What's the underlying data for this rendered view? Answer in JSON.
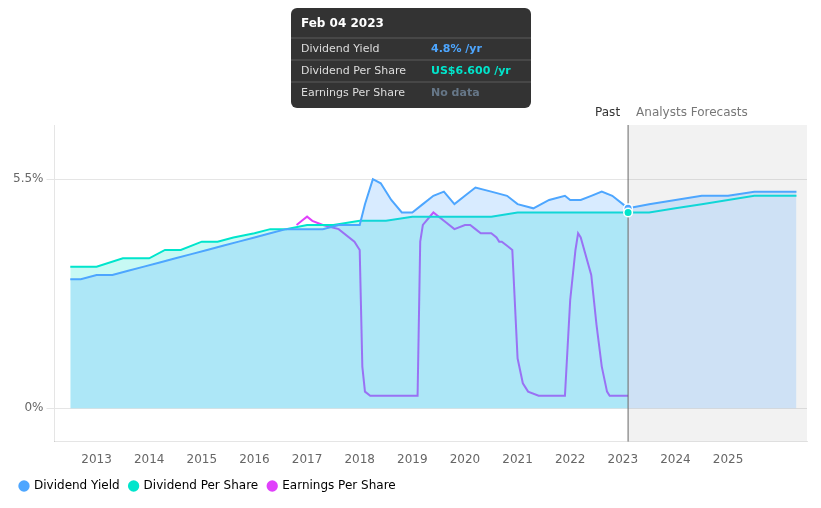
{
  "chart_data": {
    "type": "line",
    "xlim": [
      2012.2,
      2026.5
    ],
    "xticks": [
      2013,
      2014,
      2015,
      2016,
      2017,
      2018,
      2019,
      2020,
      2021,
      2022,
      2023,
      2024,
      2025
    ],
    "ylim": [
      -0.008,
      0.068
    ],
    "yticks": [
      {
        "value": 0,
        "label": "0%"
      },
      {
        "value": 0.055,
        "label": "5.5%"
      }
    ],
    "grid": true,
    "legend": "lower left",
    "series": [
      {
        "name": "Dividend Yield",
        "type": "area",
        "color": "#4da6ff",
        "x": [
          2012.5,
          2012.7,
          2013.0,
          2013.3,
          2013.6,
          2013.9,
          2014.2,
          2014.5,
          2014.8,
          2015.1,
          2015.4,
          2015.7,
          2016.0,
          2016.3,
          2016.6,
          2016.9,
          2017.0,
          2017.3,
          2017.6,
          2017.9,
          2018.0,
          2018.1,
          2018.25,
          2018.4,
          2018.6,
          2018.8,
          2019.0,
          2019.2,
          2019.4,
          2019.6,
          2019.8,
          2020.0,
          2020.2,
          2020.5,
          2020.8,
          2021.0,
          2021.3,
          2021.6,
          2021.9,
          2022.0,
          2022.2,
          2022.4,
          2022.6,
          2022.8,
          2023.0,
          2023.1
        ],
        "values": [
          0.031,
          0.031,
          0.032,
          0.032,
          0.033,
          0.034,
          0.035,
          0.036,
          0.037,
          0.038,
          0.039,
          0.04,
          0.041,
          0.042,
          0.043,
          0.043,
          0.043,
          0.043,
          0.044,
          0.044,
          0.044,
          0.049,
          0.055,
          0.054,
          0.05,
          0.047,
          0.047,
          0.049,
          0.051,
          0.052,
          0.049,
          0.051,
          0.053,
          0.052,
          0.051,
          0.049,
          0.048,
          0.05,
          0.051,
          0.05,
          0.05,
          0.051,
          0.052,
          0.051,
          0.049,
          0.048
        ]
      },
      {
        "name": "Dividend Yield",
        "type": "area",
        "color": "#4da6ff",
        "x": [
          2023.1,
          2023.5,
          2024.0,
          2024.5,
          2025.0,
          2025.5,
          2026.3
        ],
        "values": [
          0.048,
          0.049,
          0.05,
          0.051,
          0.051,
          0.052,
          0.052
        ]
      },
      {
        "name": "Dividend Per Share",
        "type": "area",
        "color": "#00e5cc",
        "x": [
          2012.5,
          2013.0,
          2013.5,
          2014.0,
          2014.3,
          2014.6,
          2015.0,
          2015.3,
          2015.6,
          2016.0,
          2016.3,
          2016.6,
          2017.0,
          2017.5,
          2018.0,
          2018.5,
          2019.0,
          2019.5,
          2020.0,
          2020.5,
          2021.0,
          2021.5,
          2022.0,
          2022.5,
          2023.0,
          2023.1
        ],
        "values": [
          0.034,
          0.034,
          0.036,
          0.036,
          0.038,
          0.038,
          0.04,
          0.04,
          0.041,
          0.042,
          0.043,
          0.043,
          0.044,
          0.044,
          0.045,
          0.045,
          0.046,
          0.046,
          0.046,
          0.046,
          0.047,
          0.047,
          0.047,
          0.047,
          0.047,
          0.047
        ]
      },
      {
        "name": "Dividend Per Share",
        "type": "line",
        "color": "#00e5cc",
        "x": [
          2023.1,
          2023.5,
          2024.0,
          2024.5,
          2025.0,
          2025.5,
          2026.3
        ],
        "values": [
          0.047,
          0.047,
          0.048,
          0.049,
          0.05,
          0.051,
          0.051
        ]
      },
      {
        "name": "Earnings Per Share",
        "type": "line",
        "color": "#e040fb",
        "x": [
          2016.8,
          2016.9,
          2017.0,
          2017.1,
          2017.3,
          2017.6,
          2017.9,
          2018.0,
          2018.05,
          2018.1,
          2018.2,
          2018.4,
          2018.6,
          2018.8,
          2018.9,
          2019.0,
          2019.1,
          2019.15,
          2019.2,
          2019.4,
          2019.6,
          2019.8,
          2020.0,
          2020.1,
          2020.2,
          2020.3,
          2020.5,
          2020.6,
          2020.65,
          2020.7,
          2020.8,
          2020.9,
          2021.0,
          2021.1,
          2021.2,
          2021.4,
          2021.6,
          2021.8,
          2021.9,
          2022.0,
          2022.1,
          2022.15,
          2022.2,
          2022.4,
          2022.5,
          2022.6,
          2022.7,
          2022.75,
          2022.8,
          2022.9,
          2023.0,
          2023.1
        ],
        "values": [
          0.044,
          0.045,
          0.046,
          0.045,
          0.044,
          0.043,
          0.04,
          0.038,
          0.01,
          0.004,
          0.003,
          0.003,
          0.003,
          0.003,
          0.003,
          0.003,
          0.003,
          0.04,
          0.044,
          0.047,
          0.045,
          0.043,
          0.044,
          0.044,
          0.043,
          0.042,
          0.042,
          0.041,
          0.04,
          0.04,
          0.039,
          0.038,
          0.012,
          0.006,
          0.004,
          0.003,
          0.003,
          0.003,
          0.003,
          0.026,
          0.038,
          0.042,
          0.041,
          0.032,
          0.02,
          0.01,
          0.004,
          0.003,
          0.003,
          0.003,
          0.003,
          0.003
        ]
      }
    ],
    "divider": {
      "x": 2023.1,
      "left_label": "Past",
      "right_label": "Analysts Forecasts",
      "markers": [
        {
          "value": 0.048,
          "color": "#4da6ff"
        },
        {
          "value": 0.047,
          "color": "#00e5cc"
        }
      ]
    },
    "tooltip": {
      "title": "Feb 04 2023",
      "rows": [
        {
          "label": "Dividend Yield",
          "value": "4.8% /yr",
          "color": "#4da6ff"
        },
        {
          "label": "Dividend Per Share",
          "value": "US$6.600 /yr",
          "color": "#00e5cc"
        },
        {
          "label": "Earnings Per Share",
          "value": "No data",
          "color": "#667788"
        }
      ]
    }
  }
}
